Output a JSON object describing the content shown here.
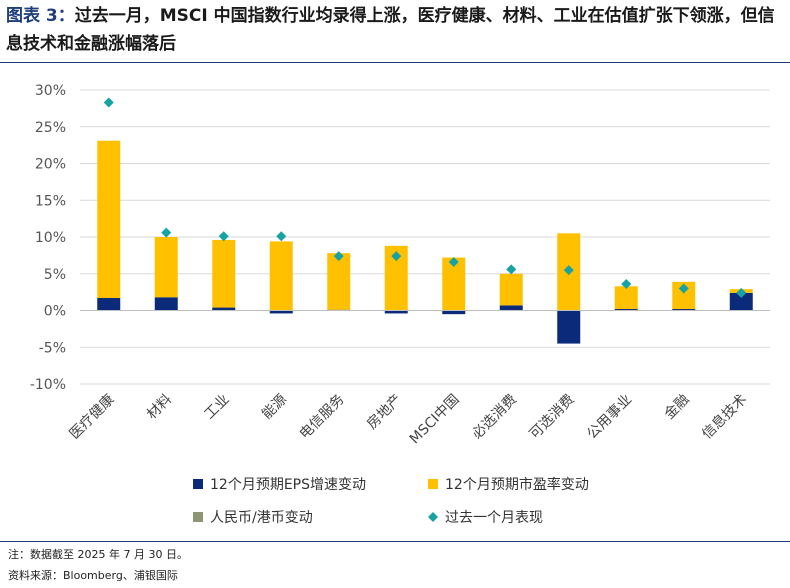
{
  "header": {
    "fig_label": "图表 3：",
    "title": "过去一月，MSCI 中国指数行业均录得上涨，医疗健康、材料、工业在估值扩张下领涨，但信息技术和金融涨幅落后"
  },
  "footer": {
    "note": "注：数据截至 2025 年 7 月 30 日。",
    "source": "资料来源：Bloomberg、浦银国际"
  },
  "colors": {
    "eps": "#0c2a7a",
    "pe": "#ffc000",
    "fx": "#8c9673",
    "total": "#17a3a3",
    "grid": "#d9d9d9",
    "title_accent": "#1f3d7a"
  },
  "chart_data": {
    "type": "bar",
    "stacked": true,
    "categories": [
      "医疗健康",
      "材料",
      "工业",
      "能源",
      "电信服务",
      "房地产",
      "MSCI中国",
      "必选消费",
      "可选消费",
      "公用事业",
      "金融",
      "信息技术"
    ],
    "series": [
      {
        "name": "12个月预期EPS增速变动",
        "type": "bar",
        "values": [
          1.7,
          1.8,
          0.4,
          -0.4,
          0.1,
          -0.4,
          -0.5,
          0.7,
          -4.5,
          0.2,
          0.2,
          2.4
        ]
      },
      {
        "name": "12个月预期市盈率变动",
        "type": "bar",
        "values": [
          21.4,
          8.2,
          9.2,
          9.4,
          7.7,
          8.8,
          7.2,
          4.3,
          10.5,
          3.1,
          3.7,
          0.5
        ]
      },
      {
        "name": "人民币/港币变动",
        "type": "bar",
        "values": [
          0,
          0,
          0,
          0,
          0,
          0,
          0,
          0,
          0,
          0,
          0,
          0
        ]
      },
      {
        "name": "过去一个月表现",
        "type": "scatter",
        "marker": "diamond",
        "values": [
          28.3,
          10.6,
          10.1,
          10.1,
          7.4,
          7.4,
          6.6,
          5.6,
          5.5,
          3.6,
          3.0,
          2.4
        ]
      }
    ],
    "yticks": [
      "30%",
      "25%",
      "20%",
      "15%",
      "10%",
      "5%",
      "0%",
      "-5%",
      "-10%"
    ],
    "ylim": [
      -10,
      30
    ],
    "grid": true,
    "legend_position": "bottom"
  }
}
